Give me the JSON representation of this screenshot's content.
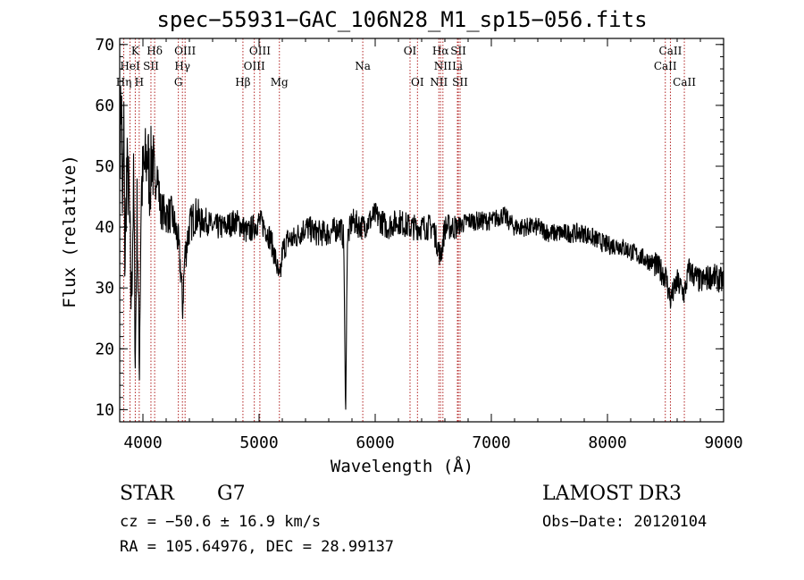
{
  "title": "spec−55931−GAC_106N28_M1_sp15−056.fits",
  "info": {
    "object_type": "STAR",
    "subclass": "G7",
    "survey": "LAMOST DR3",
    "redshift": "cz = −50.6 ± 16.9 km/s",
    "obs_date": "Obs−Date: 20120104",
    "coords": "RA = 105.64976, DEC =  28.99137"
  },
  "chart_data": {
    "type": "line",
    "title": "spec−55931−GAC_106N28_M1_sp15−056.fits",
    "xlabel": "Wavelength (Å)",
    "ylabel": "Flux (relative)",
    "xlim": [
      3800,
      9000
    ],
    "ylim": [
      8,
      71
    ],
    "x_ticks": [
      4000,
      5000,
      6000,
      7000,
      8000,
      9000
    ],
    "y_ticks": [
      10,
      20,
      30,
      40,
      50,
      60,
      70
    ],
    "grid": false,
    "line_color": "#000000",
    "marker_color": "#b22222",
    "series": [
      {
        "x": [
          3805,
          3815,
          3825,
          3835,
          3845,
          3860,
          3880,
          3900,
          3920,
          3935,
          3950,
          3968,
          3985,
          4000,
          4020,
          4040,
          4060,
          4080,
          4101,
          4120,
          4150,
          4200,
          4250,
          4300,
          4330,
          4340,
          4360,
          4400,
          4450,
          4500,
          4550,
          4600,
          4700,
          4800,
          4861,
          4900,
          4950,
          5000,
          5050,
          5100,
          5150,
          5175,
          5190,
          5200,
          5250,
          5300,
          5400,
          5500,
          5600,
          5700,
          5730,
          5745,
          5760,
          5800,
          5890,
          5950,
          6000,
          6100,
          6200,
          6300,
          6400,
          6500,
          6563,
          6600,
          6700,
          6800,
          6900,
          7000,
          7100,
          7200,
          7300,
          7400,
          7500,
          7600,
          7700,
          7800,
          7900,
          8000,
          8100,
          8200,
          8300,
          8400,
          8450,
          8500,
          8542,
          8600,
          8662,
          8700,
          8800,
          8900,
          9000
        ],
        "y": [
          55,
          63,
          40,
          58,
          33,
          50,
          45,
          27,
          47,
          18,
          44,
          16,
          46,
          48,
          50,
          52,
          47,
          53,
          45,
          50,
          43,
          42,
          42,
          38,
          32,
          26,
          35,
          40,
          42,
          41,
          41,
          40,
          40,
          41,
          40,
          39,
          40,
          41,
          40,
          38,
          34,
          31,
          33,
          36,
          38,
          38,
          40,
          39,
          39,
          40,
          38,
          8,
          38,
          41,
          40,
          41,
          42,
          40,
          41,
          40,
          40,
          40,
          35,
          40,
          40,
          41,
          41,
          41,
          42,
          40,
          40,
          40,
          39,
          39,
          39,
          39,
          38,
          37,
          37,
          36,
          35,
          34,
          33,
          32,
          28,
          31,
          29,
          33,
          31,
          32,
          31
        ]
      }
    ],
    "line_markers": [
      {
        "label": "K",
        "wavelength": 3934,
        "row": 1
      },
      {
        "label": "Hδ",
        "wavelength": 4101,
        "row": 1
      },
      {
        "label": "OIII",
        "wavelength": 4363,
        "row": 1
      },
      {
        "label": "OIII",
        "wavelength": 5007,
        "row": 1
      },
      {
        "label": "OI",
        "wavelength": 6300,
        "row": 1
      },
      {
        "label": "Hα",
        "wavelength": 6563,
        "row": 1
      },
      {
        "label": "SII",
        "wavelength": 6716,
        "row": 1
      },
      {
        "label": "CaII",
        "wavelength": 8542,
        "row": 1
      },
      {
        "label": "HeI",
        "wavelength": 3889,
        "row": 2
      },
      {
        "label": "SII",
        "wavelength": 4069,
        "row": 2
      },
      {
        "label": "Hγ",
        "wavelength": 4340,
        "row": 2
      },
      {
        "label": "OIII",
        "wavelength": 4959,
        "row": 2
      },
      {
        "label": "Na",
        "wavelength": 5893,
        "row": 2
      },
      {
        "label": "NII",
        "wavelength": 6583,
        "row": 2
      },
      {
        "label": "Li",
        "wavelength": 6708,
        "row": 2
      },
      {
        "label": "CaII",
        "wavelength": 8498,
        "row": 2
      },
      {
        "label": "Hη",
        "wavelength": 3835,
        "row": 3
      },
      {
        "label": "H",
        "wavelength": 3968,
        "row": 3
      },
      {
        "label": "G",
        "wavelength": 4305,
        "row": 3
      },
      {
        "label": "Hβ",
        "wavelength": 4861,
        "row": 3
      },
      {
        "label": "Mg",
        "wavelength": 5175,
        "row": 3
      },
      {
        "label": "OI",
        "wavelength": 6364,
        "row": 3
      },
      {
        "label": "NII",
        "wavelength": 6548,
        "row": 3
      },
      {
        "label": "SII",
        "wavelength": 6731,
        "row": 3
      },
      {
        "label": "CaII",
        "wavelength": 8662,
        "row": 3
      }
    ]
  }
}
